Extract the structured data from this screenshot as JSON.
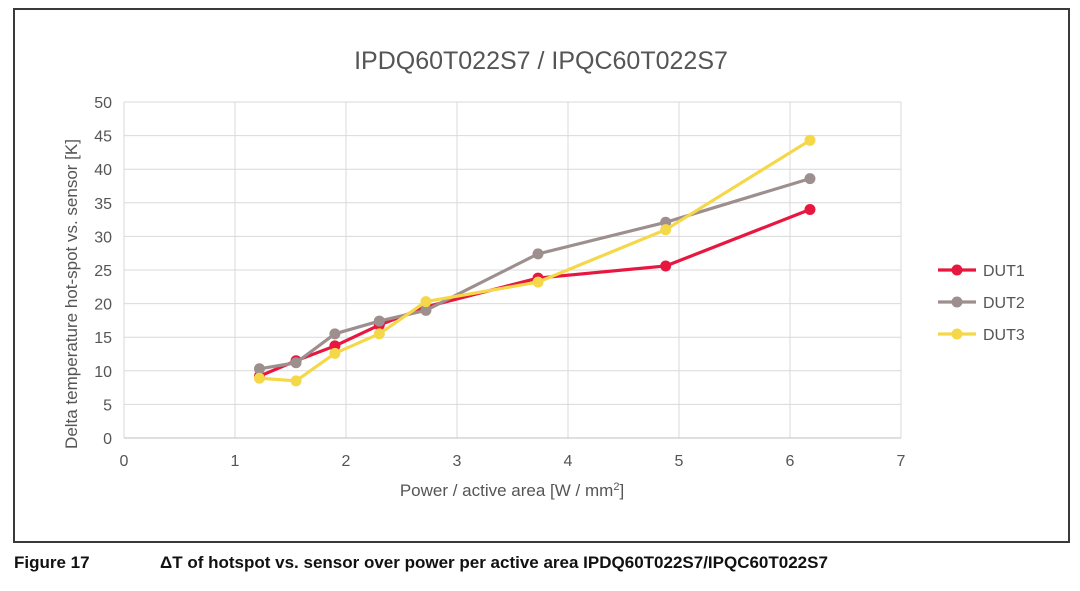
{
  "chart_data": {
    "type": "line",
    "title": "IPDQ60T022S7 / IPQC60T022S7",
    "xlabel": "Power / active area [W / mm",
    "xlabel_sup": "2",
    "xlabel_end": "]",
    "ylabel": "Delta temperature hot-spot vs. sensor [K]",
    "xlim": [
      0,
      7
    ],
    "ylim": [
      0,
      50
    ],
    "xticks": [
      "0",
      "1",
      "2",
      "3",
      "4",
      "5",
      "6",
      "7"
    ],
    "yticks": [
      "0",
      "5",
      "10",
      "15",
      "20",
      "25",
      "30",
      "35",
      "40",
      "45",
      "50"
    ],
    "grid": true,
    "legend_position": "right",
    "series": [
      {
        "name": "DUT1",
        "color": "#e8173f",
        "x": [
          1.22,
          1.55,
          1.9,
          2.3,
          2.72,
          3.73,
          4.88,
          6.18
        ],
        "y": [
          9.2,
          11.5,
          13.7,
          16.8,
          19.5,
          23.8,
          25.6,
          34.0
        ]
      },
      {
        "name": "DUT2",
        "color": "#9e8f8f",
        "x": [
          1.22,
          1.55,
          1.9,
          2.3,
          2.72,
          3.73,
          4.88,
          6.18
        ],
        "y": [
          10.3,
          11.2,
          15.5,
          17.4,
          19.0,
          27.4,
          32.1,
          38.6
        ]
      },
      {
        "name": "DUT3",
        "color": "#f5d84a",
        "x": [
          1.22,
          1.55,
          1.9,
          2.3,
          2.72,
          3.73,
          4.88,
          6.18
        ],
        "y": [
          8.9,
          8.5,
          12.6,
          15.5,
          20.3,
          23.2,
          31.0,
          44.3
        ]
      }
    ]
  },
  "caption": {
    "label": "Figure 17",
    "text": "ΔT of hotspot vs. sensor over power per active area IPDQ60T022S7/IPQC60T022S7"
  }
}
